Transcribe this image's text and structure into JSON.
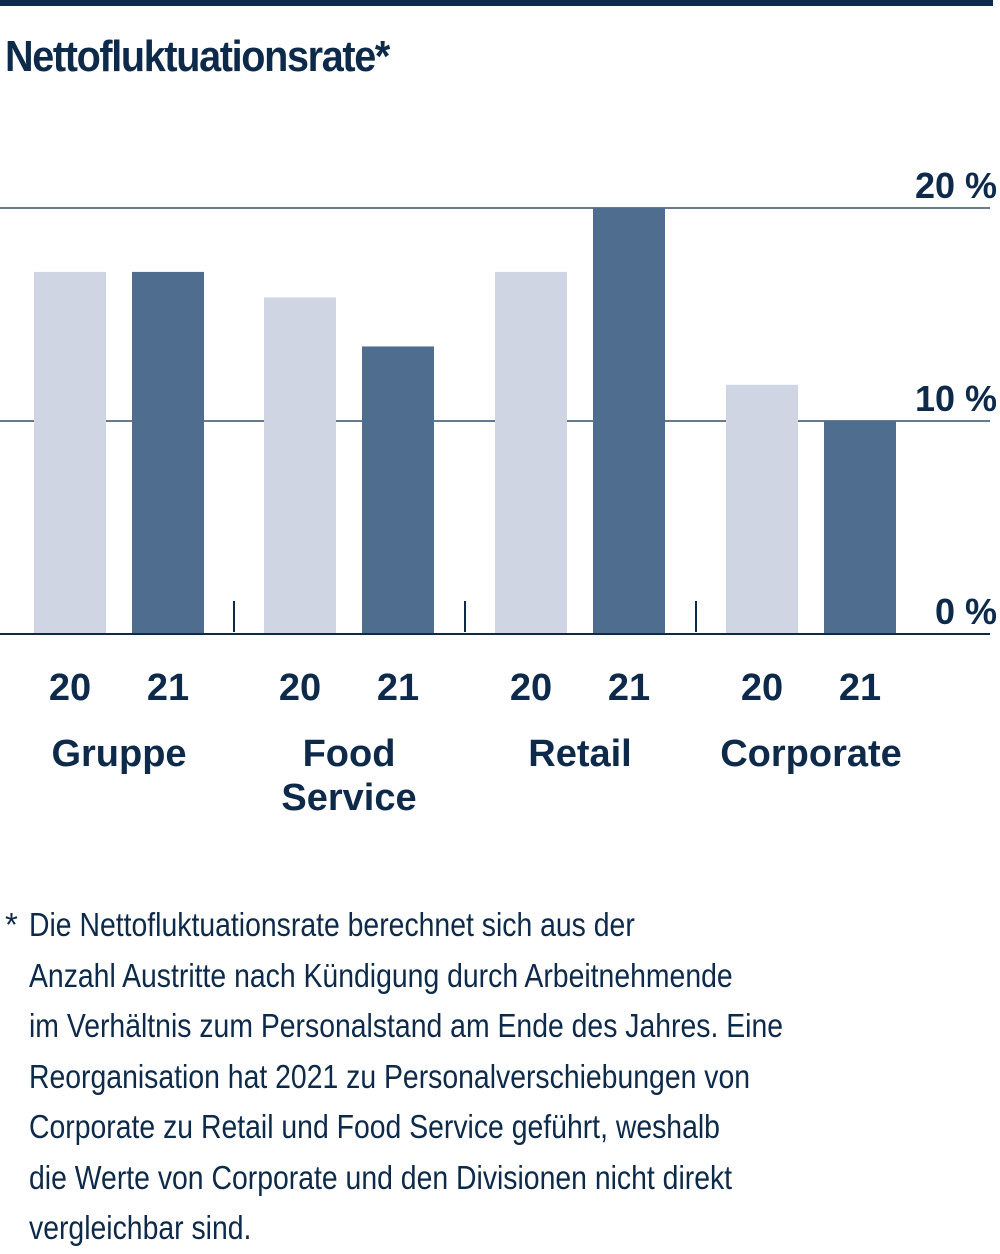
{
  "chart_data": {
    "type": "bar",
    "title": "Nettofluktuationsrate*",
    "groups": [
      {
        "name": "Gruppe",
        "label_lines": [
          "Gruppe"
        ]
      },
      {
        "name": "Food Service",
        "label_lines": [
          "Food",
          "Service"
        ]
      },
      {
        "name": "Retail",
        "label_lines": [
          "Retail"
        ]
      },
      {
        "name": "Corporate",
        "label_lines": [
          "Corporate"
        ]
      }
    ],
    "series": [
      {
        "name": "20",
        "color": "#cfd5e2",
        "values": [
          17.0,
          15.8,
          17.0,
          11.7
        ]
      },
      {
        "name": "21",
        "color": "#4e6d8f",
        "values": [
          17.0,
          13.5,
          20.0,
          10.0
        ]
      }
    ],
    "yticks": [
      {
        "value": 0,
        "label": "0 %"
      },
      {
        "value": 10,
        "label": "10 %"
      },
      {
        "value": 20,
        "label": "20 %"
      }
    ],
    "ylim": [
      0,
      20
    ],
    "grid": true,
    "xlabel": "",
    "ylabel": ""
  },
  "footnote": {
    "marker": "*",
    "text": "Die Nettofluktuationsrate berechnet sich aus der\nAnzahl Austritte nach Kündigung durch Arbeitnehmende\nim Verhältnis zum Personalstand am Ende des Jahres. Eine\nReorganisation hat 2021 zu Personalverschiebungen von\nCorporate zu Retail und Food Service geführt, weshalb\ndie Werte von Corporate und den Divisionen nicht direkt\nvergleichbar sind."
  },
  "colors": {
    "text": "#0d2a4a",
    "axis": "#0d2a4a",
    "bar_2020": "#cfd5e2",
    "bar_2021": "#4e6d8f"
  }
}
